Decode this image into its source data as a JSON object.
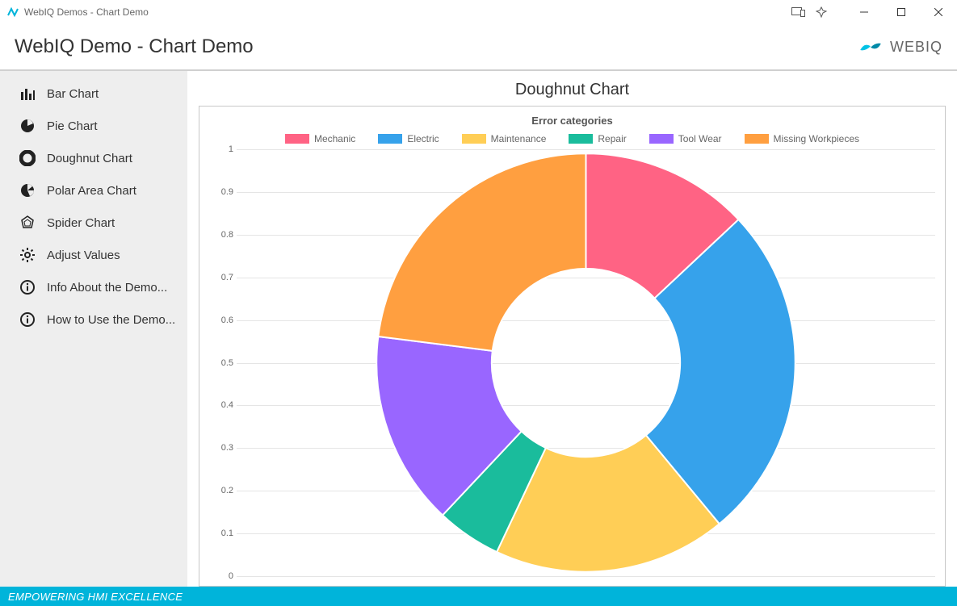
{
  "window": {
    "title": "WebIQ Demos - Chart Demo"
  },
  "header": {
    "page_title": "WebIQ Demo - Chart Demo",
    "brand_text": "WEBIQ",
    "brand_color_dark": "#008aa8",
    "brand_color_light": "#00c3e6"
  },
  "sidebar": {
    "items": [
      {
        "icon": "bar",
        "label": "Bar Chart"
      },
      {
        "icon": "pie",
        "label": "Pie Chart"
      },
      {
        "icon": "donut",
        "label": "Doughnut Chart"
      },
      {
        "icon": "polar",
        "label": "Polar Area Chart"
      },
      {
        "icon": "spider",
        "label": "Spider Chart"
      },
      {
        "icon": "gear",
        "label": "Adjust Values"
      },
      {
        "icon": "info",
        "label": "Info About the Demo..."
      },
      {
        "icon": "info",
        "label": "How to Use the Demo..."
      }
    ]
  },
  "chart": {
    "type": "doughnut",
    "title": "Doughnut Chart",
    "subtitle": "Error categories",
    "background_color": "#ffffff",
    "border_color": "#c8c8c8",
    "grid_color": "#e5e5e5",
    "ylim": [
      0,
      1
    ],
    "ytick_step": 0.1,
    "yticks": [
      0,
      0.1,
      0.2,
      0.3,
      0.4,
      0.5,
      0.6,
      0.7,
      0.8,
      0.9,
      1
    ],
    "inner_radius_ratio": 0.45,
    "start_angle_deg": -90,
    "series": [
      {
        "label": "Mechanic",
        "value": 13,
        "color": "#ff6384"
      },
      {
        "label": "Electric",
        "value": 26,
        "color": "#36a2eb"
      },
      {
        "label": "Maintenance",
        "value": 18,
        "color": "#ffce56"
      },
      {
        "label": "Repair",
        "value": 5,
        "color": "#1abc9c"
      },
      {
        "label": "Tool Wear",
        "value": 15,
        "color": "#9966ff"
      },
      {
        "label": "Missing Workpieces",
        "value": 23,
        "color": "#ff9f40"
      }
    ],
    "label_fontsize": 12,
    "title_fontsize": 20,
    "subtitle_fontsize": 13
  },
  "footer": {
    "text": "EMPOWERING HMI EXCELLENCE",
    "background_color": "#00b4da",
    "text_color": "#ffffff"
  }
}
